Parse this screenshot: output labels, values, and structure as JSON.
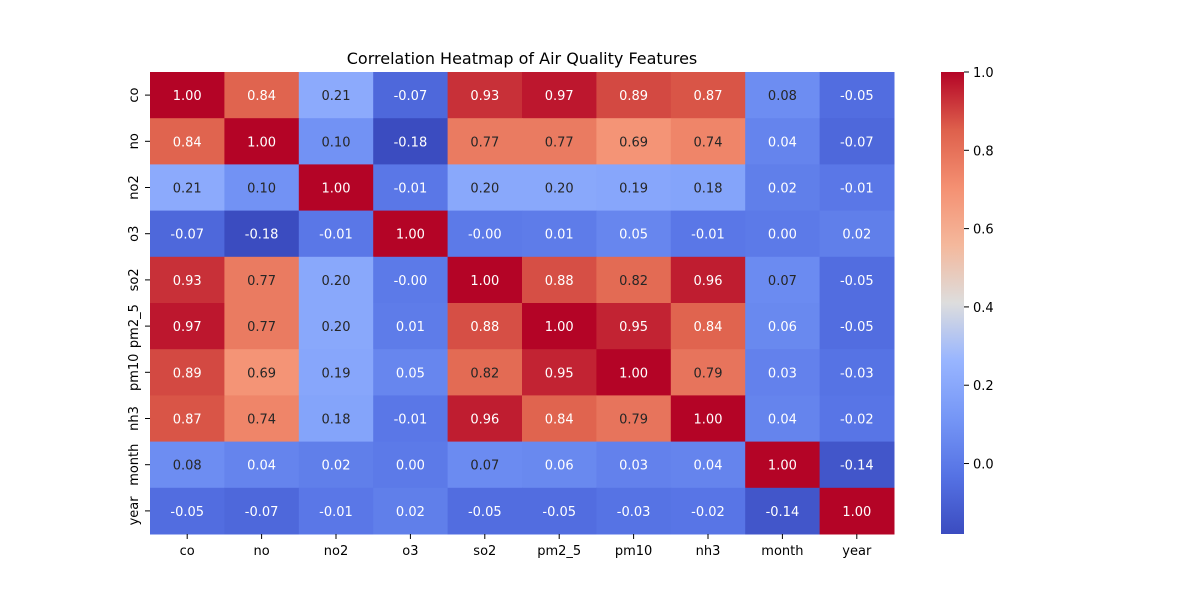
{
  "chart_data": {
    "type": "heatmap",
    "title": "Correlation Heatmap of Air Quality Features",
    "xlabel": "",
    "ylabel": "",
    "x_categories": [
      "co",
      "no",
      "no2",
      "o3",
      "so2",
      "pm2_5",
      "pm10",
      "nh3",
      "month",
      "year"
    ],
    "y_categories": [
      "co",
      "no",
      "no2",
      "o3",
      "so2",
      "pm2_5",
      "pm10",
      "nh3",
      "month",
      "year"
    ],
    "values": [
      [
        1.0,
        0.84,
        0.21,
        -0.07,
        0.93,
        0.97,
        0.89,
        0.87,
        0.08,
        -0.05
      ],
      [
        0.84,
        1.0,
        0.1,
        -0.18,
        0.77,
        0.77,
        0.69,
        0.74,
        0.04,
        -0.07
      ],
      [
        0.21,
        0.1,
        1.0,
        -0.01,
        0.2,
        0.2,
        0.19,
        0.18,
        0.02,
        -0.01
      ],
      [
        -0.07,
        -0.18,
        -0.01,
        1.0,
        -0.0,
        0.01,
        0.05,
        -0.01,
        0.0,
        0.02
      ],
      [
        0.93,
        0.77,
        0.2,
        -0.0,
        1.0,
        0.88,
        0.82,
        0.96,
        0.07,
        -0.05
      ],
      [
        0.97,
        0.77,
        0.2,
        0.01,
        0.88,
        1.0,
        0.95,
        0.84,
        0.06,
        -0.05
      ],
      [
        0.89,
        0.69,
        0.19,
        0.05,
        0.82,
        0.95,
        1.0,
        0.79,
        0.03,
        -0.03
      ],
      [
        0.87,
        0.74,
        0.18,
        -0.01,
        0.96,
        0.84,
        0.79,
        1.0,
        0.04,
        -0.02
      ],
      [
        0.08,
        0.04,
        0.02,
        0.0,
        0.07,
        0.06,
        0.03,
        0.04,
        1.0,
        -0.14
      ],
      [
        -0.05,
        -0.07,
        -0.01,
        0.02,
        -0.05,
        -0.05,
        -0.03,
        -0.02,
        -0.14,
        1.0
      ]
    ],
    "annotation_format": "2 decimals",
    "colormap": "coolwarm",
    "colorbar": {
      "vmin": -0.18,
      "vmax": 1.0,
      "ticks": [
        0.0,
        0.2,
        0.4,
        0.6,
        0.8,
        1.0
      ],
      "tick_labels": [
        "0.0",
        "0.2",
        "0.4",
        "0.6",
        "0.8",
        "1.0"
      ]
    },
    "grid": false,
    "legend": "colorbar-right"
  }
}
